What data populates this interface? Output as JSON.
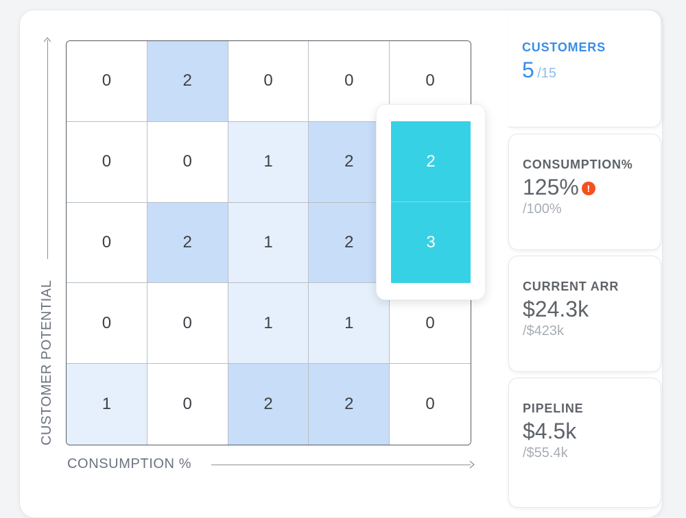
{
  "axes": {
    "y_label": "CUSTOMER POTENTIAL",
    "x_label": "CONSUMPTION %"
  },
  "grid": {
    "rows": [
      [
        "0",
        "2",
        "0",
        "0",
        "0"
      ],
      [
        "0",
        "0",
        "1",
        "2",
        "2"
      ],
      [
        "0",
        "2",
        "1",
        "2",
        "3"
      ],
      [
        "0",
        "0",
        "1",
        "1",
        "0"
      ],
      [
        "1",
        "0",
        "2",
        "2",
        "0"
      ]
    ],
    "highlighted_cells": [
      [
        1,
        4
      ],
      [
        2,
        4
      ]
    ],
    "colors": {
      "level0": "#ffffff",
      "level1": "#e6f0fc",
      "level2": "#c8ddf8",
      "highlight": "#36d1e4"
    }
  },
  "stats": {
    "customers": {
      "label": "CUSTOMERS",
      "value": "5",
      "sub": "/15",
      "color": "#3b8de6"
    },
    "consumption": {
      "label": "CONSUMPTION%",
      "value": "125%",
      "alert": "!",
      "sub": "/100%"
    },
    "arr": {
      "label": "CURRENT ARR",
      "value": "$24.3k",
      "sub": "/$423k"
    },
    "pipeline": {
      "label": "PIPELINE",
      "value": "$4.5k",
      "sub": "/$55.4k"
    }
  }
}
